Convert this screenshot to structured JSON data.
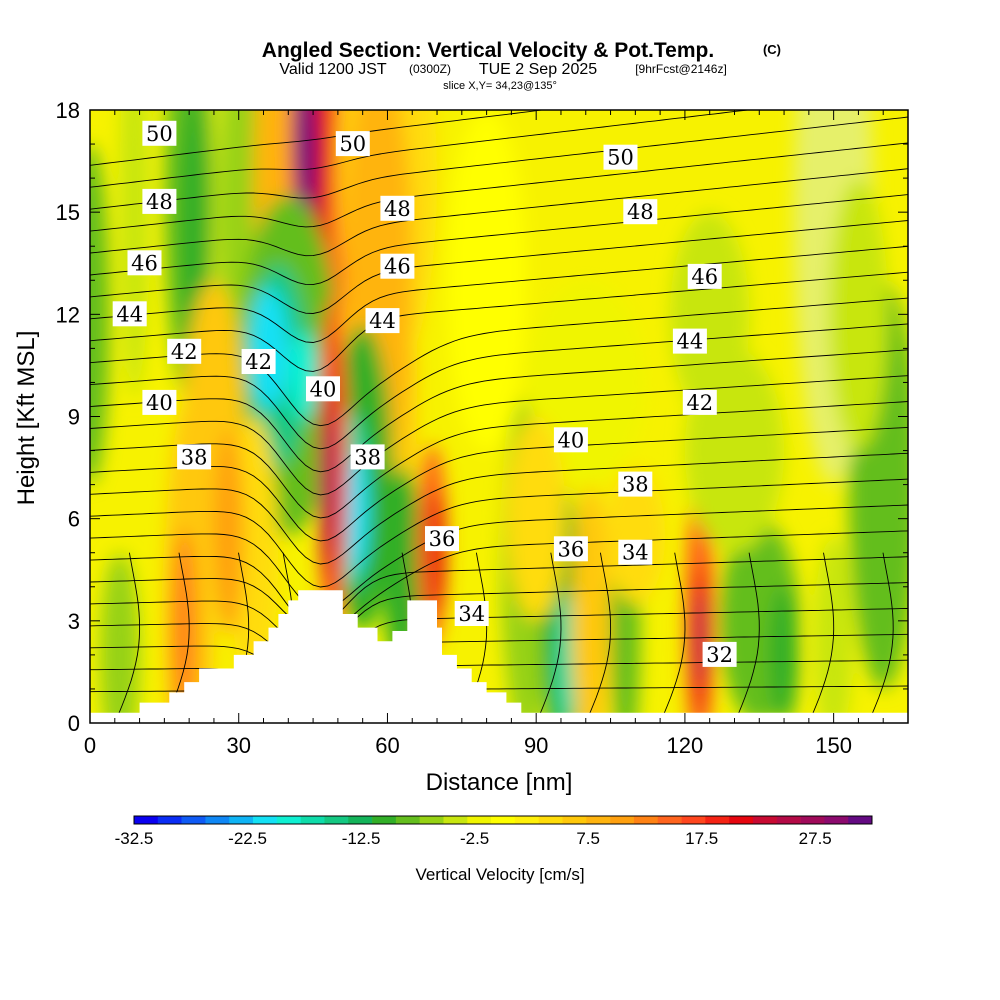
{
  "title": {
    "main": "Angled Section: Vertical Velocity & Pot.Temp.",
    "copyright": "(C)",
    "valid_prefix": "Valid 1200 JST",
    "valid_zulu": "(0300Z)",
    "valid_date": "TUE 2 Sep 2025",
    "forecast": "[9hrFcst@2146z]",
    "slice": "slice X,Y= 34,23@135°"
  },
  "chart_data": {
    "type": "heatmap",
    "xlabel": "Distance [nm]",
    "ylabel": "Height [Kft MSL]",
    "xlim": [
      0,
      165
    ],
    "ylim": [
      0,
      18
    ],
    "x_ticks": [
      0,
      30,
      60,
      90,
      120,
      150
    ],
    "y_ticks": [
      0,
      3,
      6,
      9,
      12,
      15,
      18
    ],
    "colorbar": {
      "label": "Vertical Velocity [cm/s]",
      "range": [
        -32.5,
        32.5
      ],
      "step": 2.5,
      "tick_values": [
        "-32.5",
        "-22.5",
        "-12.5",
        "-2.5",
        "7.5",
        "17.5",
        "27.5"
      ],
      "colors": [
        "#0a00f0",
        "#0a2df5",
        "#0f5af5",
        "#0f87f5",
        "#0fb4f5",
        "#14e1f5",
        "#0ff0d2",
        "#0fdcaa",
        "#14c882",
        "#14b45a",
        "#32af28",
        "#64be1e",
        "#96d214",
        "#c8e60f",
        "#f0f500",
        "#ffff00",
        "#fff00a",
        "#ffdc0a",
        "#ffc80a",
        "#ffb40f",
        "#ffa00f",
        "#ff8214",
        "#ff641e",
        "#ff461e",
        "#f52314",
        "#e6050f",
        "#c80a32",
        "#b40a46",
        "#a00a5a",
        "#8c0a6e",
        "#640a82"
      ]
    },
    "potential_temperature_contours": {
      "label_values": [
        "50",
        "48",
        "46",
        "44",
        "42",
        "40",
        "38",
        "36",
        "34",
        "32"
      ],
      "labels": [
        {
          "text": "50",
          "x": 14,
          "y": 17.3
        },
        {
          "text": "48",
          "x": 14,
          "y": 15.3
        },
        {
          "text": "46",
          "x": 11,
          "y": 13.5
        },
        {
          "text": "44",
          "x": 8,
          "y": 12.0
        },
        {
          "text": "42",
          "x": 19,
          "y": 10.9
        },
        {
          "text": "42",
          "x": 34,
          "y": 10.6
        },
        {
          "text": "40",
          "x": 14,
          "y": 9.4
        },
        {
          "text": "40",
          "x": 47,
          "y": 9.8
        },
        {
          "text": "38",
          "x": 21,
          "y": 7.8
        },
        {
          "text": "38",
          "x": 56,
          "y": 7.8
        },
        {
          "text": "50",
          "x": 53,
          "y": 17.0
        },
        {
          "text": "48",
          "x": 62,
          "y": 15.1
        },
        {
          "text": "46",
          "x": 62,
          "y": 13.4
        },
        {
          "text": "44",
          "x": 59,
          "y": 11.8
        },
        {
          "text": "36",
          "x": 71,
          "y": 5.4
        },
        {
          "text": "34",
          "x": 77,
          "y": 3.2
        },
        {
          "text": "50",
          "x": 107,
          "y": 16.6
        },
        {
          "text": "48",
          "x": 111,
          "y": 15.0
        },
        {
          "text": "46",
          "x": 124,
          "y": 13.1
        },
        {
          "text": "44",
          "x": 121,
          "y": 11.2
        },
        {
          "text": "42",
          "x": 123,
          "y": 9.4
        },
        {
          "text": "40",
          "x": 97,
          "y": 8.3
        },
        {
          "text": "38",
          "x": 110,
          "y": 7.0
        },
        {
          "text": "36",
          "x": 97,
          "y": 5.1
        },
        {
          "text": "34",
          "x": 110,
          "y": 5.0
        },
        {
          "text": "32",
          "x": 127,
          "y": 2.0
        }
      ]
    },
    "terrain": [
      {
        "x": 0,
        "h": 0.3
      },
      {
        "x": 10,
        "h": 0.3
      },
      {
        "x": 10,
        "h": 0.6
      },
      {
        "x": 16,
        "h": 0.6
      },
      {
        "x": 16,
        "h": 0.9
      },
      {
        "x": 19,
        "h": 0.9
      },
      {
        "x": 19,
        "h": 1.2
      },
      {
        "x": 22,
        "h": 1.2
      },
      {
        "x": 22,
        "h": 1.6
      },
      {
        "x": 29,
        "h": 1.6
      },
      {
        "x": 29,
        "h": 2.0
      },
      {
        "x": 33,
        "h": 2.0
      },
      {
        "x": 33,
        "h": 2.4
      },
      {
        "x": 36,
        "h": 2.4
      },
      {
        "x": 36,
        "h": 2.8
      },
      {
        "x": 38,
        "h": 2.8
      },
      {
        "x": 38,
        "h": 3.2
      },
      {
        "x": 40,
        "h": 3.2
      },
      {
        "x": 40,
        "h": 3.6
      },
      {
        "x": 42,
        "h": 3.6
      },
      {
        "x": 42,
        "h": 3.9
      },
      {
        "x": 51,
        "h": 3.9
      },
      {
        "x": 51,
        "h": 3.2
      },
      {
        "x": 54,
        "h": 3.2
      },
      {
        "x": 54,
        "h": 2.8
      },
      {
        "x": 58,
        "h": 2.8
      },
      {
        "x": 58,
        "h": 2.4
      },
      {
        "x": 61,
        "h": 2.4
      },
      {
        "x": 61,
        "h": 2.7
      },
      {
        "x": 64,
        "h": 2.7
      },
      {
        "x": 64,
        "h": 3.6
      },
      {
        "x": 70,
        "h": 3.6
      },
      {
        "x": 70,
        "h": 2.8
      },
      {
        "x": 71,
        "h": 2.8
      },
      {
        "x": 71,
        "h": 2.0
      },
      {
        "x": 74,
        "h": 2.0
      },
      {
        "x": 74,
        "h": 1.6
      },
      {
        "x": 77,
        "h": 1.6
      },
      {
        "x": 77,
        "h": 1.2
      },
      {
        "x": 80,
        "h": 1.2
      },
      {
        "x": 80,
        "h": 0.9
      },
      {
        "x": 84,
        "h": 0.9
      },
      {
        "x": 84,
        "h": 0.6
      },
      {
        "x": 87,
        "h": 0.6
      },
      {
        "x": 87,
        "h": 0.3
      },
      {
        "x": 165,
        "h": 0.3
      },
      {
        "x": 165,
        "h": 0
      },
      {
        "x": 0,
        "h": 0
      }
    ]
  }
}
